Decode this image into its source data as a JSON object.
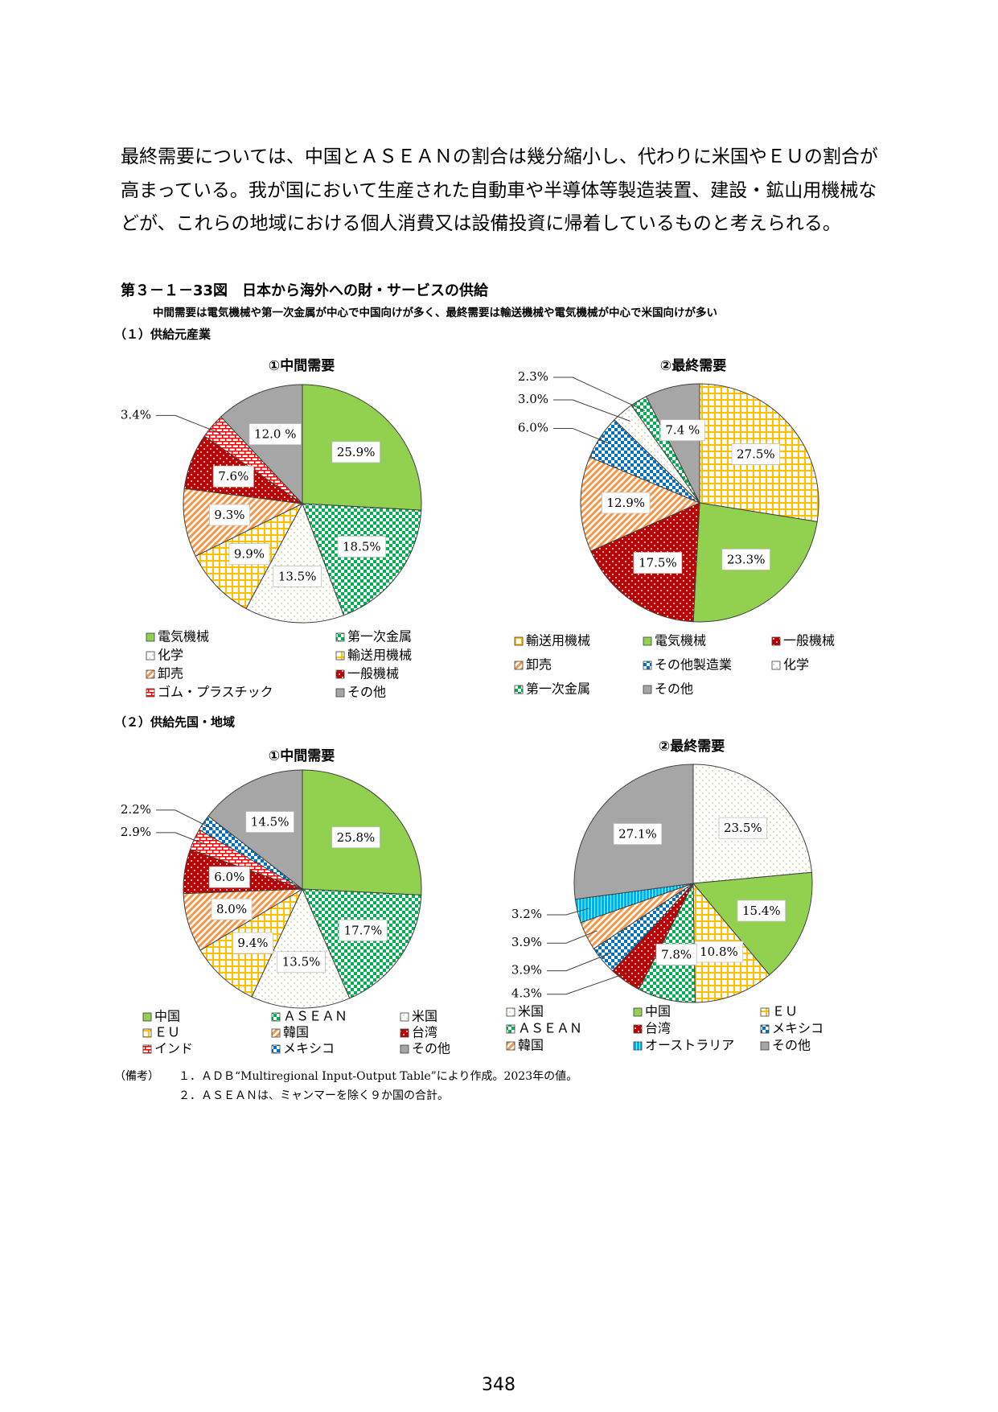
{
  "paragraph_lines": [
    "最終需要については、中国とＡＳＥＡＮの割合は幾分縮小し、代わりに米国やＥＵの割合が",
    "高まっている。我が国において生産された自動車や半導体等製造装置、建設・鉱山用機械な",
    "どが、これらの地域における個人消費又は設備投資に帰着しているものと考えられる。"
  ],
  "figure": {
    "title": "第３－１－33図　日本から海外への財・サービスの供給",
    "subtitle": "中間需要は電気機械や第一次金属が中心で中国向けが多く、最終需要は輸送機械や電気機械が中心で米国向けが多い",
    "section_labels": [
      "（１）供給元産業",
      "（２）供給先国・地域"
    ]
  },
  "chart_data": [
    {
      "type": "pie",
      "title": "①中間需要",
      "categories": [
        "電気機械",
        "第一次金属",
        "化学",
        "輸送用機械",
        "卸売",
        "一般機械",
        "ゴム・プラスチック",
        "その他"
      ],
      "values": [
        25.9,
        18.5,
        13.5,
        9.9,
        9.3,
        7.6,
        3.4,
        12.0
      ],
      "value_labels": [
        "25.9%",
        "18.5%",
        "13.5%",
        "9.9%",
        "9.3%",
        "7.6%",
        "3.4%",
        "12.0 %"
      ],
      "colors": [
        "#92d050",
        "#00b050",
        "#c4d79b",
        "#ffc000",
        "#f79646",
        "#c00000",
        "#ff0000",
        "#a6a6a6"
      ],
      "patterns": [
        "solid",
        "checker",
        "lightdots",
        "grid",
        "diag",
        "dots",
        "brick",
        "solid"
      ]
    },
    {
      "type": "pie",
      "title": "②最終需要",
      "categories": [
        "輸送用機械",
        "電気機械",
        "一般機械",
        "卸売",
        "その他製造業",
        "化学",
        "第一次金属",
        "その他"
      ],
      "values": [
        27.5,
        23.3,
        17.5,
        12.9,
        6.0,
        3.0,
        2.3,
        7.4
      ],
      "value_labels": [
        "27.5%",
        "23.3%",
        "17.5%",
        "12.9%",
        "6.0%",
        "3.0%",
        "2.3%",
        "7.4 %"
      ],
      "colors": [
        "#ffc000",
        "#92d050",
        "#c00000",
        "#f79646",
        "#0070c0",
        "#c4d79b",
        "#00b050",
        "#a6a6a6"
      ],
      "patterns": [
        "grid",
        "solid",
        "dots",
        "diag",
        "checker",
        "lightdots",
        "checker",
        "solid"
      ]
    },
    {
      "type": "pie",
      "title": "①中間需要",
      "categories": [
        "中国",
        "ＡＳＥＡＮ",
        "米国",
        "ＥＵ",
        "韓国",
        "台湾",
        "インド",
        "メキシコ",
        "その他"
      ],
      "values": [
        25.8,
        17.7,
        13.5,
        9.4,
        8.0,
        6.0,
        2.9,
        2.2,
        14.5
      ],
      "value_labels": [
        "25.8%",
        "17.7%",
        "13.5%",
        "9.4%",
        "8.0%",
        "6.0%",
        "2.9%",
        "2.2%",
        "14.5%"
      ],
      "colors": [
        "#92d050",
        "#00b050",
        "#c4d79b",
        "#ffc000",
        "#f79646",
        "#c00000",
        "#ff0000",
        "#0070c0",
        "#a6a6a6"
      ],
      "patterns": [
        "solid",
        "checker",
        "lightdots",
        "grid",
        "diag",
        "dots",
        "brick",
        "checker",
        "solid"
      ]
    },
    {
      "type": "pie",
      "title": "②最終需要",
      "categories": [
        "米国",
        "中国",
        "ＥＵ",
        "ＡＳＥＡＮ",
        "台湾",
        "メキシコ",
        "韓国",
        "オーストラリア",
        "その他"
      ],
      "values": [
        23.5,
        15.4,
        10.8,
        7.8,
        4.3,
        3.9,
        3.9,
        3.2,
        27.1
      ],
      "value_labels": [
        "23.5%",
        "15.4%",
        "10.8%",
        "7.8%",
        "4.3%",
        "3.9%",
        "3.9%",
        "3.2%",
        "27.1%"
      ],
      "colors": [
        "#c4d79b",
        "#92d050",
        "#ffc000",
        "#00b050",
        "#c00000",
        "#0070c0",
        "#f79646",
        "#00b0f0",
        "#a6a6a6"
      ],
      "patterns": [
        "lightdots",
        "solid",
        "grid",
        "checker",
        "dots",
        "checker",
        "diag",
        "stripes",
        "solid"
      ]
    }
  ],
  "notes_label": "（備考）",
  "notes": [
    "１．ＡＤＢ“Multiregional Input-Output Table”により作成。2023年の値。",
    "２．ＡＳＥＡＮは、ミャンマーを除く９か国の合計。"
  ],
  "page_number": "348"
}
